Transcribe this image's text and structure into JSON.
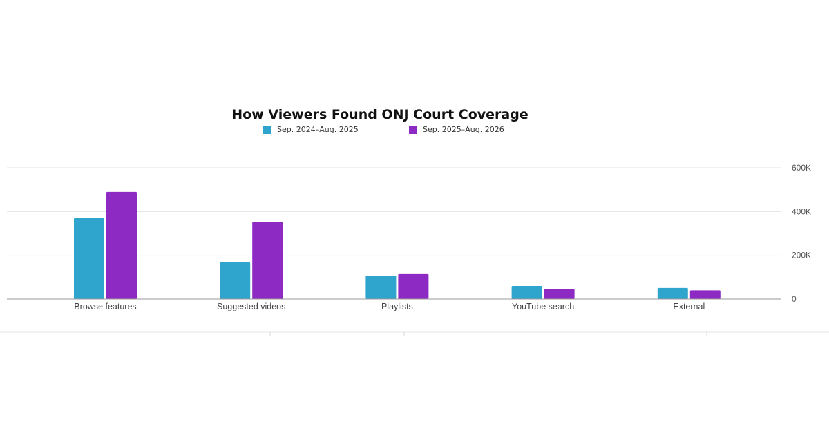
{
  "chart_data": {
    "type": "bar",
    "title": "How Viewers Found ONJ Court Coverage",
    "categories": [
      "Browse features",
      "Suggested videos",
      "Playlists",
      "YouTube search",
      "External"
    ],
    "series": [
      {
        "name": "Sep. 2024–Aug. 2025",
        "color": "#2fa4cc",
        "values": [
          370000,
          168000,
          107000,
          60000,
          51000
        ]
      },
      {
        "name": "Sep. 2025–Aug. 2026",
        "color": "#8e2ac4",
        "values": [
          490000,
          352000,
          114000,
          47000,
          40000
        ]
      }
    ],
    "xlabel": "",
    "ylabel": "",
    "ylim": [
      0,
      600000
    ],
    "yticks": [
      {
        "value": 0,
        "label": "0"
      },
      {
        "value": 200000,
        "label": "200K"
      },
      {
        "value": 400000,
        "label": "400K"
      },
      {
        "value": 600000,
        "label": "600K"
      }
    ],
    "grid": true,
    "legend": "top-center",
    "y_axis_side": "right"
  }
}
